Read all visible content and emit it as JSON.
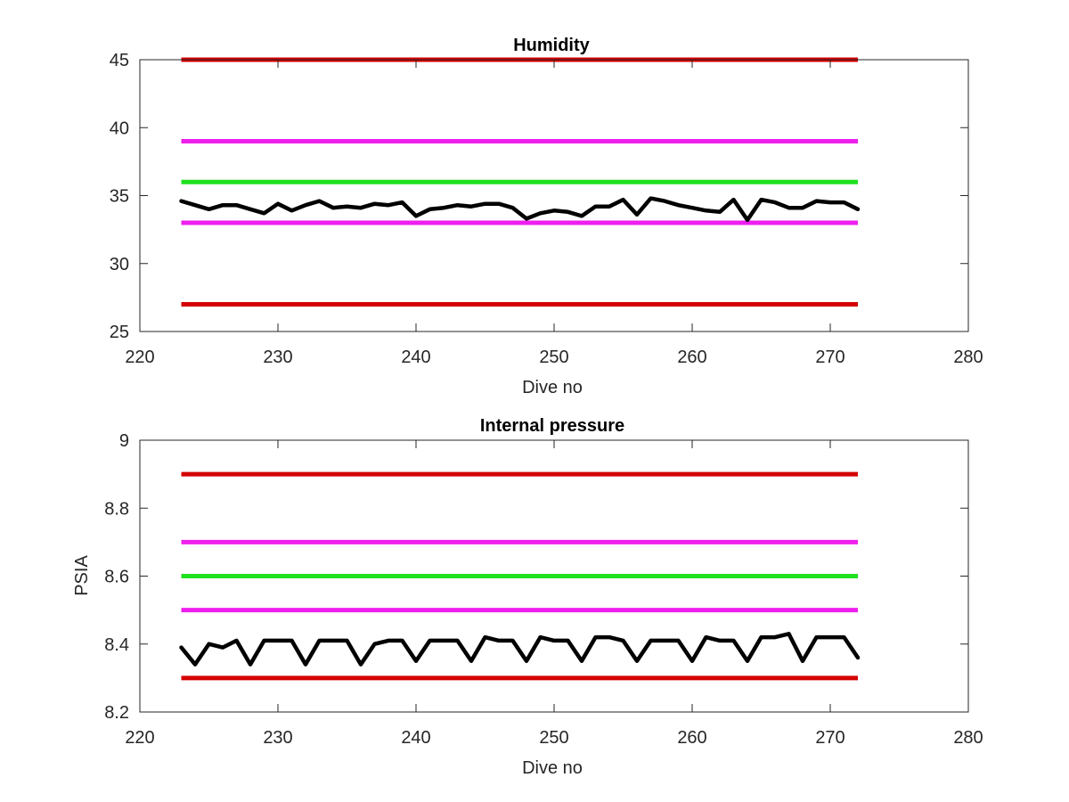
{
  "chart_data": [
    {
      "type": "line",
      "title": "Humidity",
      "xlabel": "Dive no",
      "ylabel": "",
      "xlim": [
        220,
        280
      ],
      "ylim": [
        25,
        45
      ],
      "xticks": [
        220,
        230,
        240,
        250,
        260,
        270,
        280
      ],
      "yticks": [
        25,
        30,
        35,
        40,
        45
      ],
      "grid": false,
      "thresholds": [
        {
          "value": 45,
          "x": [
            223,
            272
          ],
          "color": "#d40000"
        },
        {
          "value": 39,
          "x": [
            223,
            272
          ],
          "color": "#ee1fee"
        },
        {
          "value": 36,
          "x": [
            223,
            272
          ],
          "color": "#1fe01f"
        },
        {
          "value": 33,
          "x": [
            223,
            272
          ],
          "color": "#ee1fee"
        },
        {
          "value": 27,
          "x": [
            223,
            272
          ],
          "color": "#d40000"
        }
      ],
      "series": [
        {
          "color": "#000000",
          "x": [
            223,
            224,
            225,
            226,
            227,
            228,
            229,
            230,
            231,
            232,
            233,
            234,
            235,
            236,
            237,
            238,
            239,
            240,
            241,
            242,
            243,
            244,
            245,
            246,
            247,
            248,
            249,
            250,
            251,
            252,
            253,
            254,
            255,
            256,
            257,
            258,
            259,
            260,
            261,
            262,
            263,
            264,
            265,
            266,
            267,
            268,
            269,
            270,
            271,
            272
          ],
          "values": [
            34.6,
            34.3,
            34.0,
            34.3,
            34.3,
            34.0,
            33.7,
            34.4,
            33.9,
            34.3,
            34.6,
            34.1,
            34.2,
            34.1,
            34.4,
            34.3,
            34.5,
            33.5,
            34.0,
            34.1,
            34.3,
            34.2,
            34.4,
            34.4,
            34.1,
            33.3,
            33.7,
            33.9,
            33.8,
            33.5,
            34.2,
            34.2,
            34.7,
            33.6,
            34.8,
            34.6,
            34.3,
            34.1,
            33.9,
            33.8,
            34.7,
            33.2,
            34.7,
            34.5,
            34.1,
            34.1,
            34.6,
            34.5,
            34.5,
            34.0
          ]
        }
      ]
    },
    {
      "type": "line",
      "title": "Internal pressure",
      "xlabel": "Dive no",
      "ylabel": "PSIA",
      "xlim": [
        220,
        280
      ],
      "ylim": [
        8.2,
        9
      ],
      "xticks": [
        220,
        230,
        240,
        250,
        260,
        270,
        280
      ],
      "yticks": [
        8.2,
        8.4,
        8.6,
        8.8,
        9
      ],
      "ytick_labels": [
        "8.2",
        "8.4",
        "8.6",
        "8.8",
        "9"
      ],
      "grid": false,
      "thresholds": [
        {
          "value": 8.9,
          "x": [
            223,
            272
          ],
          "color": "#d40000"
        },
        {
          "value": 8.7,
          "x": [
            223,
            272
          ],
          "color": "#ee1fee"
        },
        {
          "value": 8.6,
          "x": [
            223,
            272
          ],
          "color": "#1fe01f"
        },
        {
          "value": 8.5,
          "x": [
            223,
            272
          ],
          "color": "#ee1fee"
        },
        {
          "value": 8.3,
          "x": [
            223,
            272
          ],
          "color": "#d40000"
        }
      ],
      "series": [
        {
          "color": "#000000",
          "x": [
            223,
            224,
            225,
            226,
            227,
            228,
            229,
            230,
            231,
            232,
            233,
            234,
            235,
            236,
            237,
            238,
            239,
            240,
            241,
            242,
            243,
            244,
            245,
            246,
            247,
            248,
            249,
            250,
            251,
            252,
            253,
            254,
            255,
            256,
            257,
            258,
            259,
            260,
            261,
            262,
            263,
            264,
            265,
            266,
            267,
            268,
            269,
            270,
            271,
            272
          ],
          "values": [
            8.39,
            8.34,
            8.4,
            8.39,
            8.41,
            8.34,
            8.41,
            8.41,
            8.41,
            8.34,
            8.41,
            8.41,
            8.41,
            8.34,
            8.4,
            8.41,
            8.41,
            8.35,
            8.41,
            8.41,
            8.41,
            8.35,
            8.42,
            8.41,
            8.41,
            8.35,
            8.42,
            8.41,
            8.41,
            8.35,
            8.42,
            8.42,
            8.41,
            8.35,
            8.41,
            8.41,
            8.41,
            8.35,
            8.42,
            8.41,
            8.41,
            8.35,
            8.42,
            8.42,
            8.43,
            8.35,
            8.42,
            8.42,
            8.42,
            8.36
          ]
        }
      ]
    }
  ]
}
